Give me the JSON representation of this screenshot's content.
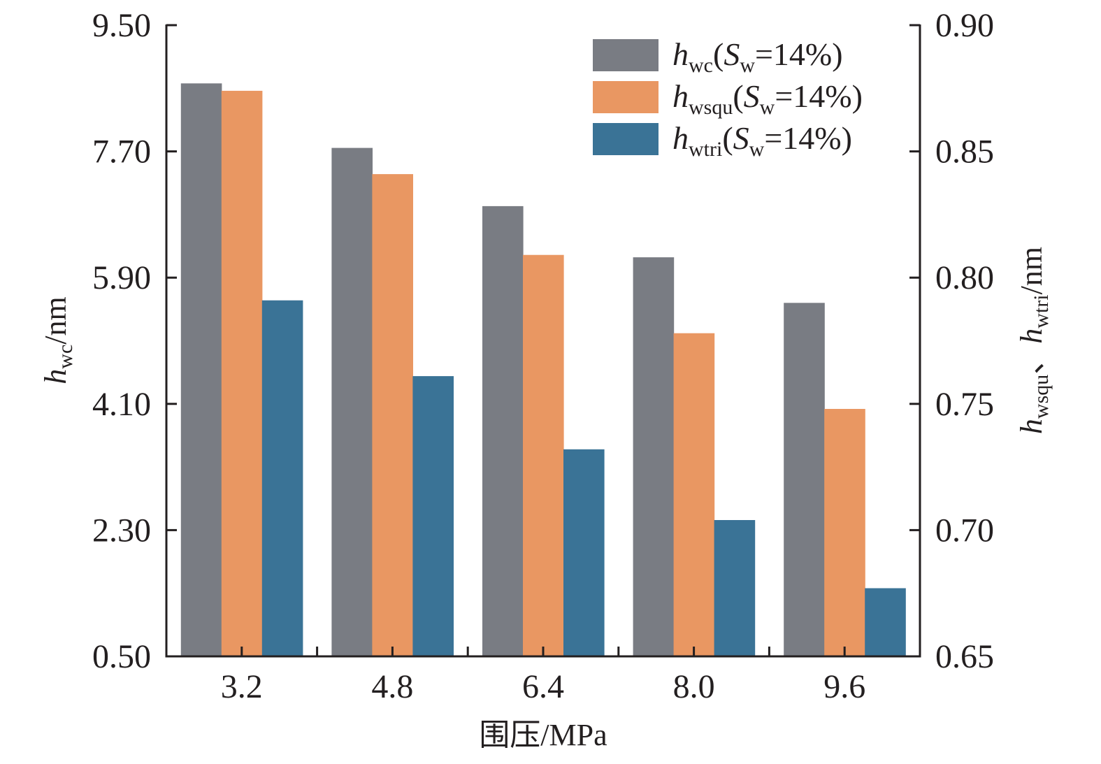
{
  "chart_data": {
    "type": "bar",
    "title": "",
    "xlabel": "围压/MPa",
    "ylabel_left": {
      "symbol": "h",
      "sub": "wc",
      "unit": "/nm"
    },
    "ylabel_right": {
      "parts": [
        {
          "symbol": "h",
          "sub": "wsqu"
        },
        {
          "sep": "、"
        },
        {
          "symbol": "h",
          "sub": "wtri"
        }
      ],
      "unit": "/nm"
    },
    "categories": [
      "3.2",
      "4.8",
      "6.4",
      "8.0",
      "9.6"
    ],
    "y_left": {
      "lim": [
        0.5,
        9.5
      ],
      "ticks": [
        "0.50",
        "2.30",
        "4.10",
        "5.90",
        "7.70",
        "9.50"
      ]
    },
    "y_right": {
      "lim": [
        0.65,
        0.9
      ],
      "ticks": [
        "0.65",
        "0.70",
        "0.75",
        "0.80",
        "0.85",
        "0.90"
      ]
    },
    "grid": false,
    "legend_position": "top-right",
    "series": [
      {
        "name": "h_wc(S_w=14%)",
        "label": {
          "symbol": "h",
          "sub": "wc",
          "rest_symbol": "S",
          "rest_sub": "w",
          "tail": "=14%)"
        },
        "axis": "left",
        "color": "#797c83",
        "values": [
          8.67,
          7.75,
          6.92,
          6.19,
          5.54
        ]
      },
      {
        "name": "h_wsqu(S_w=14%)",
        "label": {
          "symbol": "h",
          "sub": "wsqu",
          "rest_symbol": "S",
          "rest_sub": "w",
          "tail": "=14%)"
        },
        "axis": "right",
        "color": "#e99762",
        "values": [
          0.874,
          0.841,
          0.809,
          0.778,
          0.748
        ]
      },
      {
        "name": "h_wtri(S_w=14%)",
        "label": {
          "symbol": "h",
          "sub": "wtri",
          "rest_symbol": "S",
          "rest_sub": "w",
          "tail": "=14%)"
        },
        "axis": "right",
        "color": "#3a7396",
        "values": [
          0.791,
          0.761,
          0.732,
          0.704,
          0.677
        ]
      }
    ]
  }
}
